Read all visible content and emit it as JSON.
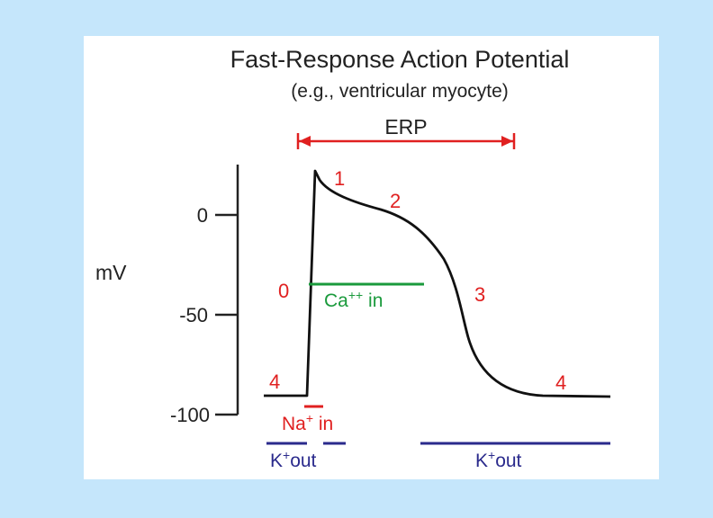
{
  "title": "Fast-Response Action Potential",
  "subtitle": "(e.g., ventricular myocyte)",
  "erp_label": "ERP",
  "y_axis": {
    "label": "mV",
    "ticks": [
      {
        "value": 0,
        "label": "0"
      },
      {
        "value": -50,
        "label": "-50"
      },
      {
        "value": -100,
        "label": "-100"
      }
    ]
  },
  "phases": [
    "0",
    "1",
    "2",
    "3",
    "4",
    "4"
  ],
  "currents": {
    "ca_in": {
      "ion": "Ca",
      "charge": "++",
      "dir": " in"
    },
    "na_in": {
      "ion": "Na",
      "charge": "+",
      "dir": " in"
    },
    "k_out_left": {
      "ion": "K",
      "charge": "+",
      "dir": "out"
    },
    "k_out_right": {
      "ion": "K",
      "charge": "+",
      "dir": "out"
    }
  },
  "colors": {
    "background": "#c5e6fb",
    "panel": "#ffffff",
    "curve": "#111111",
    "phase_labels": "#e02020",
    "erp": "#e02020",
    "ca": "#1a9a3c",
    "na": "#e02020",
    "k": "#2a2a8c"
  }
}
